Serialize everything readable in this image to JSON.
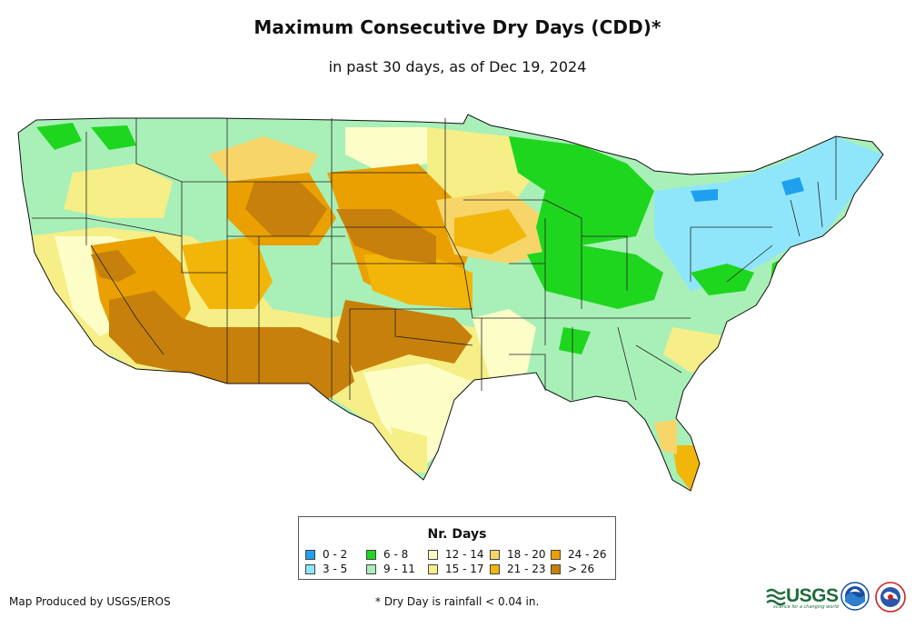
{
  "title": "Maximum Consecutive Dry Days (CDD)*",
  "subtitle": "in past 30 days, as of Dec 19, 2024",
  "legend": {
    "title": "Nr. Days",
    "items": [
      {
        "label": "0 - 2",
        "color": "#1e9ff0"
      },
      {
        "label": "3 - 5",
        "color": "#8fe6fb"
      },
      {
        "label": "6 - 8",
        "color": "#1fd61f"
      },
      {
        "label": "9 - 11",
        "color": "#a9f0b8"
      },
      {
        "label": "12 - 14",
        "color": "#fdfdc8"
      },
      {
        "label": "15 - 17",
        "color": "#f6ee86"
      },
      {
        "label": "18 - 20",
        "color": "#f7d569"
      },
      {
        "label": "21 - 23",
        "color": "#f2b509"
      },
      {
        "label": "24 - 26",
        "color": "#e9a000"
      },
      {
        "label": "> 26",
        "color": "#c7800b"
      }
    ]
  },
  "footer": {
    "producer": "Map Produced by USGS/EROS",
    "note": "* Dry Day is rainfall < 0.04 in."
  },
  "logos": {
    "usgs_text": "USGS",
    "usgs_tagline": "science for a changing world",
    "noaa": "noaa-logo-icon",
    "nws": "nws-logo-icon"
  }
}
